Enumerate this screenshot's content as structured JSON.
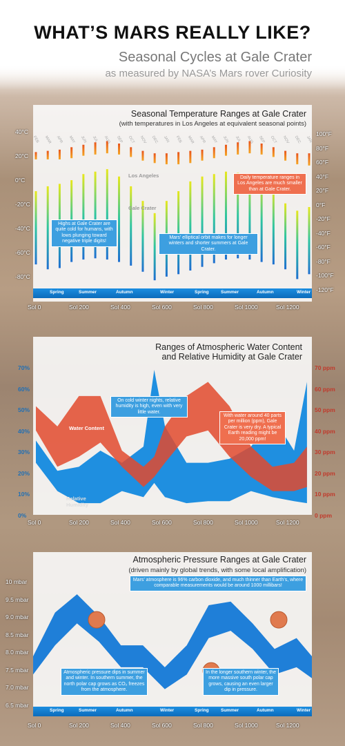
{
  "header": {
    "title": "WHAT’S MARS REALLY LIKE?",
    "subtitle": "Seasonal Cycles at Gale Crater",
    "subtitle2": "as measured by NASA’s Mars rover Curiosity"
  },
  "sol_ticks": [
    "Sol 0",
    "Sol 200",
    "Sol 400",
    "Sol 600",
    "Sol 800",
    "Sol 1000",
    "Sol 1200"
  ],
  "seasons": [
    "Spring",
    "Summer",
    "Autumn",
    "Winter",
    "Spring",
    "Summer",
    "Autumn",
    "Winter"
  ],
  "temp": {
    "title": "Seasonal Temperature Ranges at Gale Crater",
    "subtitle": "(with temperatures in Los Angeles at equivalent seasonal points)",
    "yticks_c": [
      "40°C",
      "20°C",
      "0°C",
      "-20°C",
      "-40°C",
      "-60°C",
      "-80°C"
    ],
    "yticks_f": [
      "100°F",
      "80°F",
      "60°F",
      "40°F",
      "20°F",
      "0°F",
      "-20°F",
      "-40°F",
      "-60°F",
      "-80°F",
      "-100°F",
      "-120°F"
    ],
    "la_label": "Los Angeles",
    "gc_label": "Gale Crater",
    "months": [
      "FEB",
      "MAR",
      "APR",
      "MAY",
      "JUN",
      "JUL",
      "AUG",
      "SEP",
      "OCT",
      "NOV",
      "DEC",
      "JAN",
      "FEB",
      "MAR",
      "APR",
      "MAY",
      "JUN",
      "JUL",
      "AUG",
      "SEP",
      "OCT",
      "NOV",
      "DEC",
      "JAN"
    ],
    "note_la": "Daily temperature ranges in Los Angeles are much smaller than at Gale Crater.",
    "note_cold": "Highs at Gale Crater are quite cold for humans, with lows plunging toward negative triple digits!",
    "note_orbit": "Mars’ elliptical orbit makes for longer winters and shorter summers at Gale Crater."
  },
  "water": {
    "title": "Ranges of Atmospheric Water Content",
    "title2": "and Relative Humidity at Gale Crater",
    "yticks_pct": [
      "70%",
      "60%",
      "50%",
      "40%",
      "30%",
      "20%",
      "10%",
      "0%"
    ],
    "yticks_ppm": [
      "70 ppm",
      "60 ppm",
      "50 ppm",
      "40 ppm",
      "30 ppm",
      "20 ppm",
      "10 ppm",
      "0 ppm"
    ],
    "wc_label": "Water Content",
    "rh_label": "Relative Humidity",
    "note_winter": "On cold winter nights, relative humidity is high, even with very little water.",
    "note_dry": "With water around 40 parts per million (ppm), Gale Crater is very dry. A typical Earth reading might be 20,000 ppm!"
  },
  "pressure": {
    "title": "Atmospheric Pressure Ranges at Gale Crater",
    "subtitle": "(driven mainly by global trends, with some local amplification)",
    "yticks": [
      "10 mbar",
      "9.5 mbar",
      "9.0 mbar",
      "8.5 mbar",
      "8.0 mbar",
      "7.5 mbar",
      "7.0 mbar",
      "6.5 mbar"
    ],
    "note_co2": "Mars’ atmosphere is 96% carbon dioxide, and much thinner than Earth’s, where comparable measurements would be around 1000 millibars!",
    "note_dips": "Atmospheric pressure dips in summer and winter. In southern summer, the north polar cap grows as CO₂ freezes from the atmosphere.",
    "note_winter": "In the longer southern winter, the more massive south polar cap grows, causing an even larger dip in pressure."
  },
  "chart_data": [
    {
      "type": "bar",
      "title": "Seasonal Temperature Ranges at Gale Crater",
      "ylabel": "°C",
      "ylim": [
        -90,
        40
      ],
      "series": [
        {
          "name": "Los Angeles",
          "low": [
            14,
            14,
            14,
            15,
            17,
            18,
            19,
            18,
            16,
            13,
            11,
            10,
            10,
            11,
            13,
            15,
            17,
            18,
            19,
            18,
            16,
            13,
            10,
            9
          ],
          "high": [
            20,
            21,
            22,
            24,
            26,
            28,
            29,
            27,
            24,
            21,
            19,
            19,
            20,
            21,
            22,
            24,
            26,
            28,
            29,
            27,
            24,
            21,
            19,
            19
          ]
        },
        {
          "name": "Gale Crater",
          "low": [
            -72,
            -76,
            -75,
            -70,
            -68,
            -67,
            -68,
            -70,
            -73,
            -78,
            -85,
            -82,
            -80,
            -77,
            -74,
            -71,
            -68,
            -67,
            -68,
            -70,
            -72,
            -76,
            -84,
            -80
          ],
          "high": [
            -12,
            -8,
            -6,
            -3,
            2,
            4,
            6,
            0,
            -8,
            -20,
            -30,
            -20,
            -12,
            -4,
            0,
            2,
            4,
            3,
            1,
            -2,
            -10,
            -22,
            -28,
            -25
          ]
        }
      ]
    },
    {
      "type": "area",
      "title": "Ranges of Atmospheric Water Content and Relative Humidity at Gale Crater",
      "x": [
        0,
        100,
        200,
        300,
        400,
        500,
        550,
        600,
        700,
        800,
        900,
        1000,
        1100,
        1200,
        1260
      ],
      "series": [
        {
          "name": "Relative Humidity",
          "low": [
            22,
            8,
            2,
            2,
            8,
            5,
            12,
            5,
            2,
            3,
            3,
            8,
            5,
            3,
            2
          ],
          "high": [
            33,
            18,
            20,
            28,
            22,
            30,
            68,
            40,
            22,
            22,
            24,
            30,
            45,
            28,
            62
          ]
        },
        {
          "name": "Water Content",
          "low": [
            38,
            20,
            25,
            32,
            20,
            10,
            15,
            22,
            35,
            38,
            25,
            15,
            8,
            8,
            10
          ],
          "high": [
            50,
            40,
            55,
            55,
            28,
            20,
            25,
            40,
            55,
            62,
            50,
            30,
            20,
            22,
            30
          ]
        }
      ],
      "ylim": [
        0,
        70
      ]
    },
    {
      "type": "area",
      "title": "Atmospheric Pressure Ranges at Gale Crater",
      "x": [
        0,
        100,
        200,
        300,
        400,
        500,
        600,
        700,
        800,
        900,
        1000,
        1100,
        1200,
        1270
      ],
      "series": [
        {
          "name": "Pressure",
          "low": [
            7.4,
            8.2,
            8.8,
            8.3,
            7.6,
            7.6,
            7.0,
            7.4,
            8.4,
            8.6,
            8.1,
            7.4,
            7.6,
            7.3
          ],
          "high": [
            7.9,
            9.1,
            9.6,
            9.0,
            8.2,
            8.2,
            7.6,
            8.2,
            9.3,
            9.4,
            8.8,
            8.1,
            8.4,
            7.9
          ]
        }
      ],
      "ylim": [
        6.5,
        10
      ]
    }
  ]
}
